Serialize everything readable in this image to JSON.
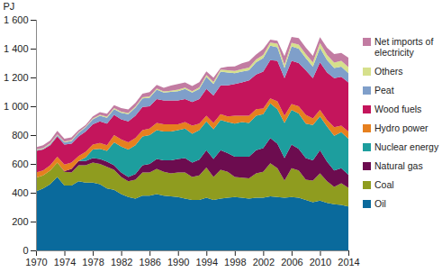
{
  "chart_data": {
    "type": "area",
    "stacked": true,
    "y_label": "PJ",
    "legend": "right",
    "grid": false,
    "x": [
      1970,
      1971,
      1972,
      1973,
      1974,
      1975,
      1976,
      1977,
      1978,
      1979,
      1980,
      1981,
      1982,
      1983,
      1984,
      1985,
      1986,
      1987,
      1988,
      1989,
      1990,
      1991,
      1992,
      1993,
      1994,
      1995,
      1996,
      1997,
      1998,
      1999,
      2000,
      2001,
      2002,
      2003,
      2004,
      2005,
      2006,
      2007,
      2008,
      2009,
      2010,
      2011,
      2012,
      2013,
      2014
    ],
    "xlim": [
      1970,
      2014
    ],
    "xticks": [
      1970,
      1974,
      1978,
      1982,
      1986,
      1990,
      1994,
      1998,
      2002,
      2006,
      2010,
      2014
    ],
    "ylim": [
      0,
      1600
    ],
    "yticks": [
      0,
      200,
      400,
      600,
      800,
      {
        "value": 1000,
        "label": "1 000"
      },
      {
        "value": 1200,
        "label": "1 200"
      },
      {
        "value": 1400,
        "label": "1 400"
      },
      {
        "value": 1600,
        "label": "1 600"
      }
    ],
    "series": [
      {
        "name": "Oil",
        "color": "#0a6a9c",
        "values": [
          410,
          430,
          460,
          510,
          450,
          450,
          480,
          470,
          470,
          460,
          430,
          420,
          390,
          370,
          360,
          380,
          380,
          390,
          380,
          375,
          370,
          360,
          350,
          350,
          365,
          350,
          360,
          365,
          370,
          365,
          360,
          365,
          365,
          375,
          370,
          365,
          370,
          365,
          350,
          335,
          345,
          330,
          320,
          315,
          305
        ]
      },
      {
        "name": "Coal",
        "color": "#8f9c1f",
        "values": [
          95,
          90,
          95,
          100,
          95,
          90,
          110,
          120,
          140,
          140,
          150,
          140,
          120,
          110,
          130,
          160,
          160,
          175,
          165,
          160,
          170,
          180,
          160,
          170,
          210,
          160,
          200,
          180,
          140,
          140,
          140,
          170,
          180,
          230,
          200,
          120,
          200,
          190,
          140,
          150,
          190,
          150,
          120,
          150,
          130
        ]
      },
      {
        "name": "Natural gas",
        "color": "#6c0c4f",
        "values": [
          0,
          0,
          0,
          0,
          5,
          25,
          30,
          30,
          30,
          35,
          35,
          30,
          30,
          30,
          40,
          50,
          60,
          70,
          80,
          90,
          95,
          100,
          100,
          110,
          120,
          125,
          135,
          130,
          140,
          145,
          150,
          160,
          165,
          175,
          170,
          155,
          165,
          150,
          150,
          140,
          160,
          135,
          115,
          105,
          90
        ]
      },
      {
        "name": "Nuclear energy",
        "color": "#1d9e9e",
        "values": [
          0,
          0,
          0,
          0,
          0,
          0,
          0,
          25,
          60,
          70,
          75,
          160,
          180,
          190,
          200,
          200,
          200,
          200,
          200,
          200,
          200,
          205,
          200,
          205,
          200,
          205,
          210,
          215,
          230,
          240,
          235,
          240,
          235,
          240,
          240,
          245,
          240,
          245,
          240,
          245,
          235,
          245,
          240,
          250,
          250
        ]
      },
      {
        "name": "Hydro power",
        "color": "#e6801f",
        "values": [
          35,
          35,
          35,
          40,
          45,
          45,
          35,
          40,
          35,
          40,
          40,
          50,
          50,
          50,
          50,
          45,
          45,
          50,
          50,
          50,
          40,
          45,
          55,
          45,
          40,
          45,
          40,
          40,
          55,
          45,
          50,
          45,
          40,
          35,
          55,
          50,
          40,
          50,
          60,
          45,
          45,
          45,
          60,
          45,
          50
        ]
      },
      {
        "name": "Wood fuels",
        "color": "#c4155c",
        "values": [
          150,
          145,
          140,
          140,
          140,
          130,
          135,
          140,
          140,
          150,
          150,
          140,
          140,
          145,
          155,
          160,
          155,
          165,
          165,
          165,
          165,
          160,
          165,
          170,
          185,
          190,
          200,
          215,
          220,
          230,
          245,
          240,
          255,
          265,
          280,
          260,
          300,
          300,
          310,
          280,
          330,
          330,
          340,
          340,
          340
        ]
      },
      {
        "name": "Peat",
        "color": "#7f9fca",
        "values": [
          5,
          5,
          8,
          10,
          15,
          20,
          25,
          30,
          35,
          40,
          40,
          40,
          45,
          50,
          55,
          60,
          60,
          65,
          55,
          60,
          65,
          70,
          65,
          70,
          85,
          80,
          95,
          90,
          75,
          75,
          70,
          85,
          95,
          100,
          95,
          70,
          100,
          100,
          85,
          80,
          100,
          85,
          70,
          70,
          65
        ]
      },
      {
        "name": "Others",
        "color": "#d6e08c",
        "values": [
          5,
          5,
          5,
          5,
          5,
          5,
          5,
          5,
          5,
          5,
          8,
          8,
          8,
          8,
          8,
          8,
          8,
          8,
          8,
          8,
          10,
          10,
          10,
          12,
          12,
          14,
          15,
          15,
          16,
          18,
          18,
          20,
          22,
          22,
          24,
          24,
          26,
          28,
          28,
          30,
          34,
          36,
          38,
          40,
          42
        ]
      },
      {
        "name": "Net imports of electricity",
        "color": "#c27ca2",
        "values": [
          15,
          20,
          20,
          25,
          20,
          20,
          15,
          10,
          15,
          20,
          20,
          20,
          25,
          25,
          25,
          25,
          30,
          25,
          25,
          35,
          40,
          35,
          35,
          35,
          25,
          30,
          10,
          25,
          30,
          40,
          45,
          35,
          40,
          20,
          20,
          60,
          40,
          45,
          45,
          45,
          40,
          50,
          60,
          55,
          65
        ]
      }
    ]
  }
}
